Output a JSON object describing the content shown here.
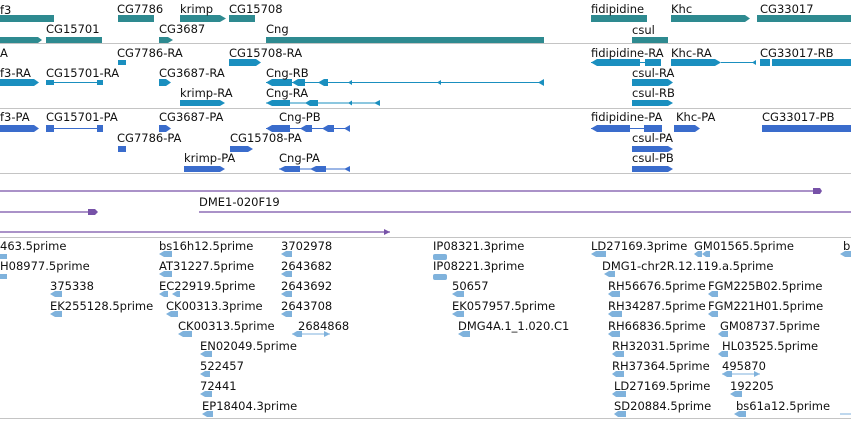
{
  "colors": {
    "gene": "#2e8a90",
    "mrna": "#1a8fbf",
    "protein": "#3a6ccc",
    "clone": "#7752a8",
    "est": "#7fb2dc",
    "separator": "#c4c4c4"
  },
  "tracks": {
    "genes": {
      "labels": [
        {
          "id": "g-f3",
          "text": "f3"
        },
        {
          "id": "g-cg7786",
          "text": "CG7786"
        },
        {
          "id": "g-krimp",
          "text": "krimp"
        },
        {
          "id": "g-cg15708",
          "text": "CG15708"
        },
        {
          "id": "g-cg15701",
          "text": "CG15701"
        },
        {
          "id": "g-cg3687",
          "text": "CG3687"
        },
        {
          "id": "g-cng",
          "text": "Cng"
        },
        {
          "id": "g-fidipidine",
          "text": "fidipidine"
        },
        {
          "id": "g-khc",
          "text": "Khc"
        },
        {
          "id": "g-cg33017",
          "text": "CG33017"
        },
        {
          "id": "g-csul",
          "text": "csul"
        }
      ]
    },
    "mrna": {
      "labels": [
        {
          "id": "m-a",
          "text": "A"
        },
        {
          "id": "m-cg7786-ra",
          "text": "CG7786-RA"
        },
        {
          "id": "m-cg15708-ra",
          "text": "CG15708-RA"
        },
        {
          "id": "m-fidipidine-ra",
          "text": "fidipidine-RA"
        },
        {
          "id": "m-khc-ra",
          "text": "Khc-RA"
        },
        {
          "id": "m-cg33017-rb",
          "text": "CG33017-RB"
        },
        {
          "id": "m-f3-ra",
          "text": "f3-RA"
        },
        {
          "id": "m-cg15701-ra",
          "text": "CG15701-RA"
        },
        {
          "id": "m-cg3687-ra",
          "text": "CG3687-RA"
        },
        {
          "id": "m-cng-rb",
          "text": "Cng-RB"
        },
        {
          "id": "m-csul-ra",
          "text": "csul-RA"
        },
        {
          "id": "m-krimp-ra",
          "text": "krimp-RA"
        },
        {
          "id": "m-cng-ra",
          "text": "Cng-RA"
        },
        {
          "id": "m-csul-rb",
          "text": "csul-RB"
        }
      ]
    },
    "proteins": {
      "labels": [
        {
          "id": "p-f3-pa",
          "text": "f3-PA"
        },
        {
          "id": "p-cg15701-pa",
          "text": "CG15701-PA"
        },
        {
          "id": "p-cg3687-pa",
          "text": "CG3687-PA"
        },
        {
          "id": "p-cng-pb",
          "text": "Cng-PB"
        },
        {
          "id": "p-fidipidine-pa",
          "text": "fidipidine-PA"
        },
        {
          "id": "p-khc-pa",
          "text": "Khc-PA"
        },
        {
          "id": "p-cg33017-pb",
          "text": "CG33017-PB"
        },
        {
          "id": "p-cg7786-pa",
          "text": "CG7786-PA"
        },
        {
          "id": "p-cg15708-pa",
          "text": "CG15708-PA"
        },
        {
          "id": "p-csul-pa",
          "text": "csul-PA"
        },
        {
          "id": "p-krimp-pa",
          "text": "krimp-PA"
        },
        {
          "id": "p-cng-pa",
          "text": "Cng-PA"
        },
        {
          "id": "p-csul-pb",
          "text": "csul-PB"
        }
      ]
    },
    "clones": {
      "labels": [
        {
          "id": "c-dme1",
          "text": "DME1-020F19"
        }
      ]
    },
    "ests": {
      "labels": [
        {
          "id": "e-463",
          "text": "463.5prime"
        },
        {
          "id": "e-bs16h12",
          "text": "bs16h12.5prime"
        },
        {
          "id": "e-3702978",
          "text": "3702978"
        },
        {
          "id": "e-ip08321",
          "text": "IP08321.3prime"
        },
        {
          "id": "e-ld27169",
          "text": "LD27169.3prime"
        },
        {
          "id": "e-gm01565",
          "text": "GM01565.5prime"
        },
        {
          "id": "e-b",
          "text": "b"
        },
        {
          "id": "e-h08977",
          "text": "H08977.5prime"
        },
        {
          "id": "e-at31227",
          "text": "AT31227.5prime"
        },
        {
          "id": "e-2643682",
          "text": "2643682"
        },
        {
          "id": "e-ip08221",
          "text": "IP08221.3prime"
        },
        {
          "id": "e-dmg1",
          "text": "DMG1-chr2R.12.119.a.5prime"
        },
        {
          "id": "e-375338",
          "text": "375338"
        },
        {
          "id": "e-ec22919",
          "text": "EC22919.5prime"
        },
        {
          "id": "e-2643692",
          "text": "2643692"
        },
        {
          "id": "e-50657",
          "text": "50657"
        },
        {
          "id": "e-rh56676",
          "text": "RH56676.5prime"
        },
        {
          "id": "e-fgm225",
          "text": "FGM225B02.5prime"
        },
        {
          "id": "e-ek255128",
          "text": "EK255128.5prime"
        },
        {
          "id": "e-ck00313a",
          "text": "CK00313.3prime"
        },
        {
          "id": "e-2643708",
          "text": "2643708"
        },
        {
          "id": "e-ek057957",
          "text": "EK057957.5prime"
        },
        {
          "id": "e-rh34287",
          "text": "RH34287.5prime"
        },
        {
          "id": "e-fgm221",
          "text": "FGM221H01.5prime"
        },
        {
          "id": "e-2684868",
          "text": "2684868"
        },
        {
          "id": "e-ck00313b",
          "text": "CK00313.5prime"
        },
        {
          "id": "e-dmg4a",
          "text": "DMG4A.1_1.020.C1"
        },
        {
          "id": "e-rh66836",
          "text": "RH66836.5prime"
        },
        {
          "id": "e-gm08737",
          "text": "GM08737.5prime"
        },
        {
          "id": "e-en02049",
          "text": "EN02049.5prime"
        },
        {
          "id": "e-rh32031",
          "text": "RH32031.5prime"
        },
        {
          "id": "e-hl03525",
          "text": "HL03525.5prime"
        },
        {
          "id": "e-522457",
          "text": "522457"
        },
        {
          "id": "e-rh37364",
          "text": "RH37364.5prime"
        },
        {
          "id": "e-495870",
          "text": "495870"
        },
        {
          "id": "e-72441",
          "text": "72441"
        },
        {
          "id": "e-ld27169b",
          "text": "LD27169.5prime"
        },
        {
          "id": "e-192205",
          "text": "192205"
        },
        {
          "id": "e-ep18404",
          "text": "EP18404.3prime"
        },
        {
          "id": "e-sd20884",
          "text": "SD20884.5prime"
        },
        {
          "id": "e-bs61a12",
          "text": "bs61a12.5prime"
        }
      ]
    }
  }
}
